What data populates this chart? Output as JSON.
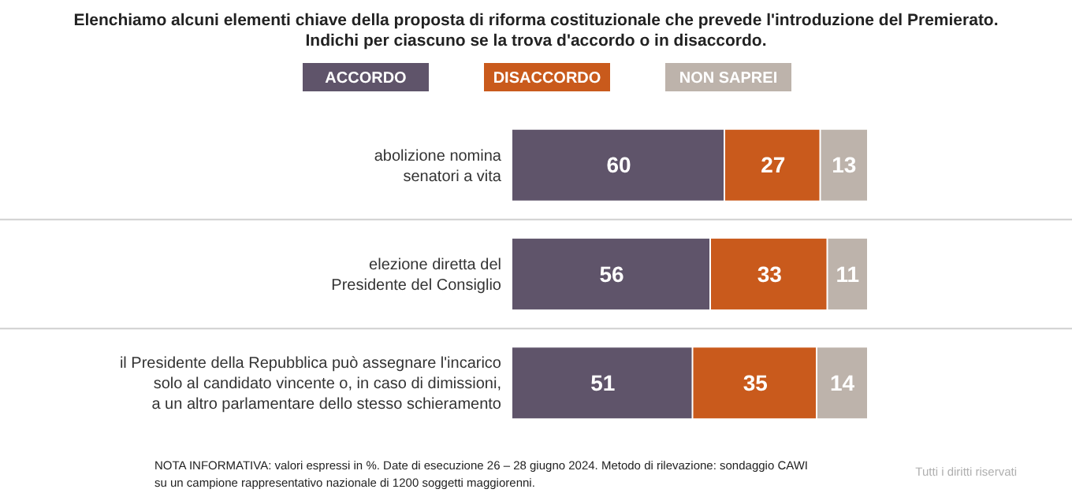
{
  "chart_data": {
    "type": "bar",
    "orientation": "horizontal",
    "stacked": true,
    "title": "Elenchiamo alcuni elementi chiave della proposta di riforma costituzionale che prevede l'introduzione del Premierato.\nIndichi per ciascuno se la trova d'accordo o in disaccordo.",
    "categories": [
      "abolizione nomina\nsenatori a vita",
      "elezione diretta del\nPresidente del Consiglio",
      "il Presidente della Repubblica può assegnare l'incarico\nsolo al candidato vincente o, in caso di dimissioni,\na un altro parlamentare dello stesso schieramento"
    ],
    "series": [
      {
        "name": "ACCORDO",
        "color": "#5f546a",
        "values": [
          60,
          56,
          51
        ]
      },
      {
        "name": "DISACCORDO",
        "color": "#c95a1c",
        "values": [
          27,
          33,
          35
        ]
      },
      {
        "name": "NON SAPREI",
        "color": "#bdb3ab",
        "values": [
          13,
          11,
          14
        ]
      }
    ],
    "xlim": [
      0,
      100
    ],
    "data_labels": true,
    "legend": "top",
    "annotations": [
      "NOTA INFORMATIVA: valori espressi in %. Date di esecuzione 26 – 28 giugno 2024. Metodo di rilevazione: sondaggio CAWI su un campione rappresentativo nazionale di 1200 soggetti maggiorenni.",
      "Tutti i diritti riservati"
    ]
  }
}
